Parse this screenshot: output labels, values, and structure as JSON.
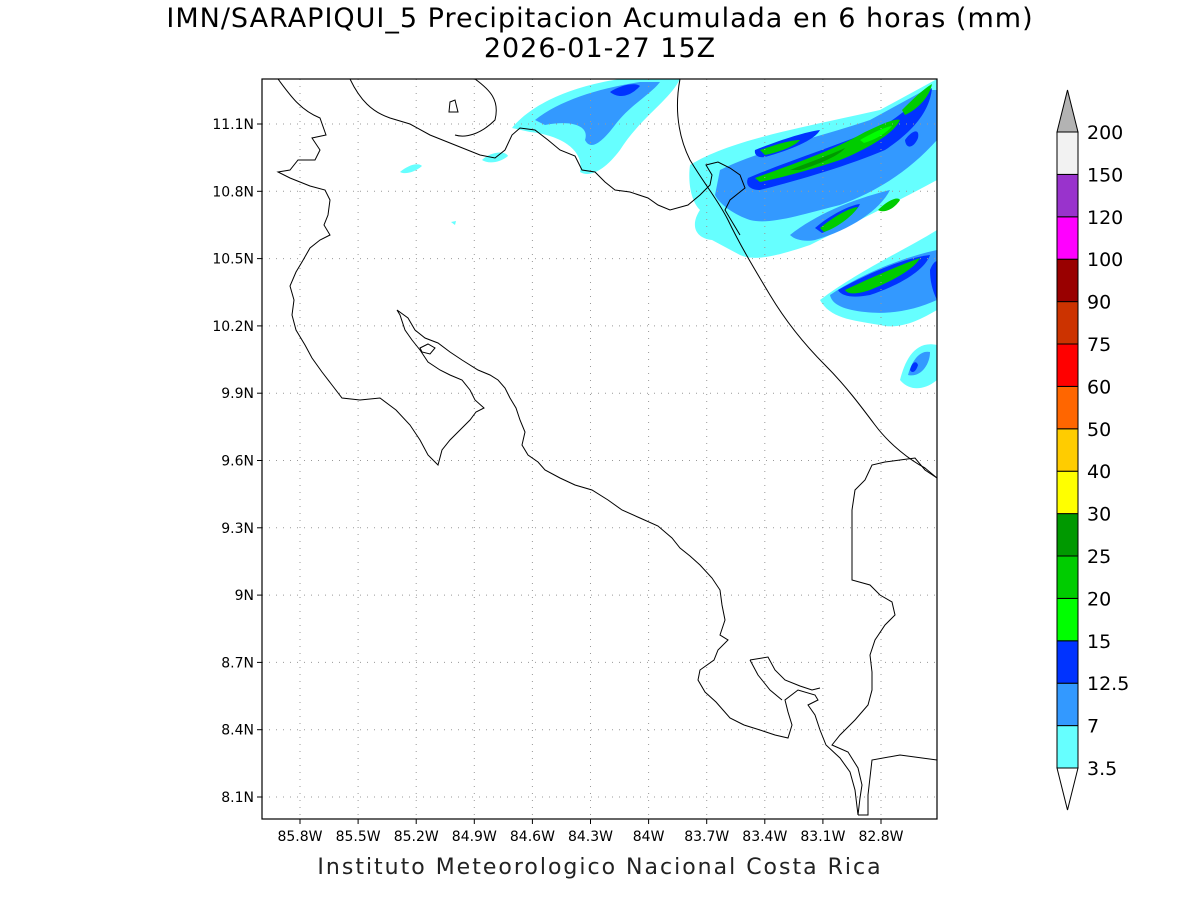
{
  "title": {
    "line1": "IMN/SARAPIQUI_5 Precipitacion Acumulada en 6 horas (mm)",
    "line2": "2026-01-27 15Z"
  },
  "footer": "Instituto Meteorologico Nacional Costa Rica",
  "map": {
    "lon_range": [
      -86.0,
      -83.0
    ],
    "lat_range": [
      8.0,
      11.3
    ],
    "x_ticks": [
      "85.8W",
      "85.5W",
      "85.2W",
      "84.9W",
      "84.6W",
      "84.3W",
      "84W",
      "83.7W",
      "83.4W",
      "83.1W",
      "82.8W"
    ],
    "y_ticks": [
      "11.1N",
      "10.8N",
      "10.5N",
      "10.2N",
      "9.9N",
      "9.6N",
      "9.3N",
      "9N",
      "8.7N",
      "8.4N",
      "8.1N"
    ],
    "grid": "dotted"
  },
  "colorbar": {
    "labels": [
      "3.5",
      "7",
      "12.5",
      "15",
      "20",
      "25",
      "30",
      "40",
      "50",
      "60",
      "75",
      "90",
      "100",
      "120",
      "150",
      "200"
    ],
    "colors": [
      "#ffffff",
      "#66ffff",
      "#3399ff",
      "#0033ff",
      "#00ff00",
      "#00cc00",
      "#009900",
      "#ffff00",
      "#ffcc00",
      "#ff6600",
      "#ff0000",
      "#cc3300",
      "#990000",
      "#ff00ff",
      "#9933cc",
      "#f2f2f2",
      "#b3b3b3"
    ]
  },
  "legend_colors": {
    "light": "#66ffff",
    "medium": "#3399ff",
    "blue": "#0033ff",
    "green": "#00cc00",
    "lightgreen": "#00ff00",
    "darkgreen": "#009900"
  }
}
